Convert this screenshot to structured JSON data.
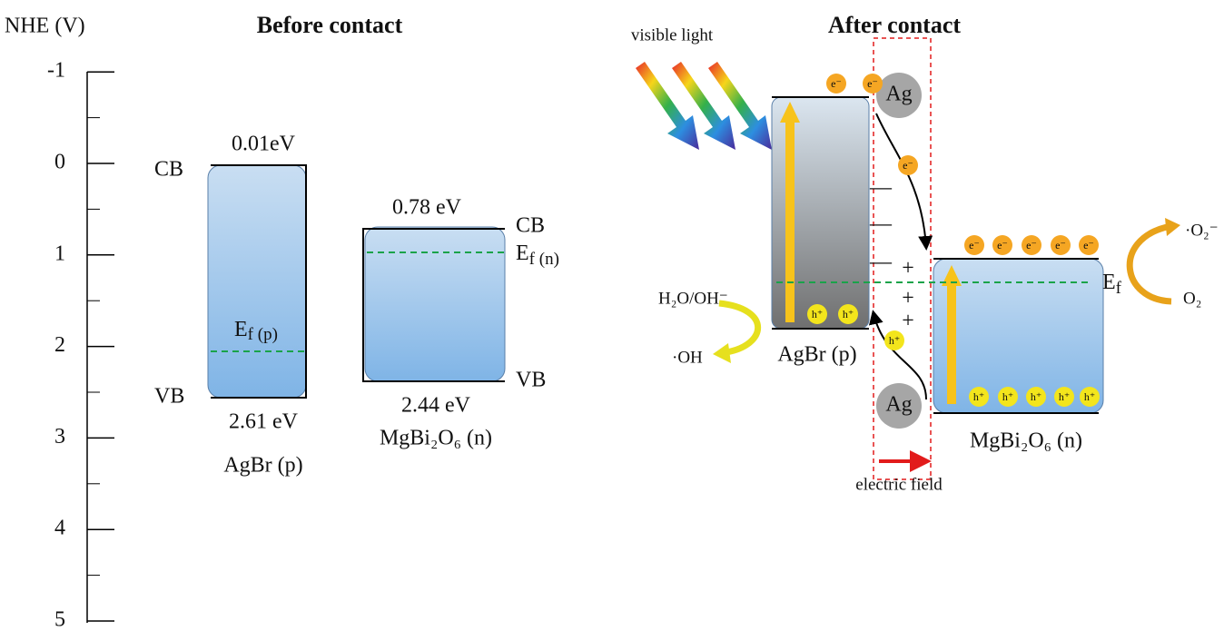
{
  "axis": {
    "label": "NHE (V)",
    "ticks": [
      -1,
      0,
      1,
      2,
      3,
      4,
      5
    ]
  },
  "before": {
    "title": "Before contact",
    "agbr": {
      "cb_label": "CB",
      "vb_label": "VB",
      "cb_energy": "0.01eV",
      "vb_energy": "2.61 eV",
      "fermi": {
        "main": "E",
        "sub": "f (p)"
      },
      "name": "AgBr (p)"
    },
    "mgbi2o6": {
      "cb_label": "CB",
      "vb_label": "VB",
      "cb_energy": "0.78 eV",
      "vb_energy": "2.44 eV",
      "fermi": {
        "main": "E",
        "sub": "f (n)"
      },
      "name": "MgBi₂O₆ (n)"
    }
  },
  "after": {
    "title": "After contact",
    "light": "visible light",
    "electron": "e⁻",
    "hole": "h⁺",
    "ag": "Ag",
    "field": "electric field",
    "minus": "—",
    "plus": "+",
    "agbr_name": "AgBr (p)",
    "mgbi2o6_name": "MgBi₂O₆ (n)",
    "fermi": {
      "main": "E",
      "sub": "f"
    },
    "water": "H₂O/OH⁻",
    "hydroxyl": "·OH",
    "superoxide": "·O₂⁻",
    "oxygen": "O₂"
  }
}
